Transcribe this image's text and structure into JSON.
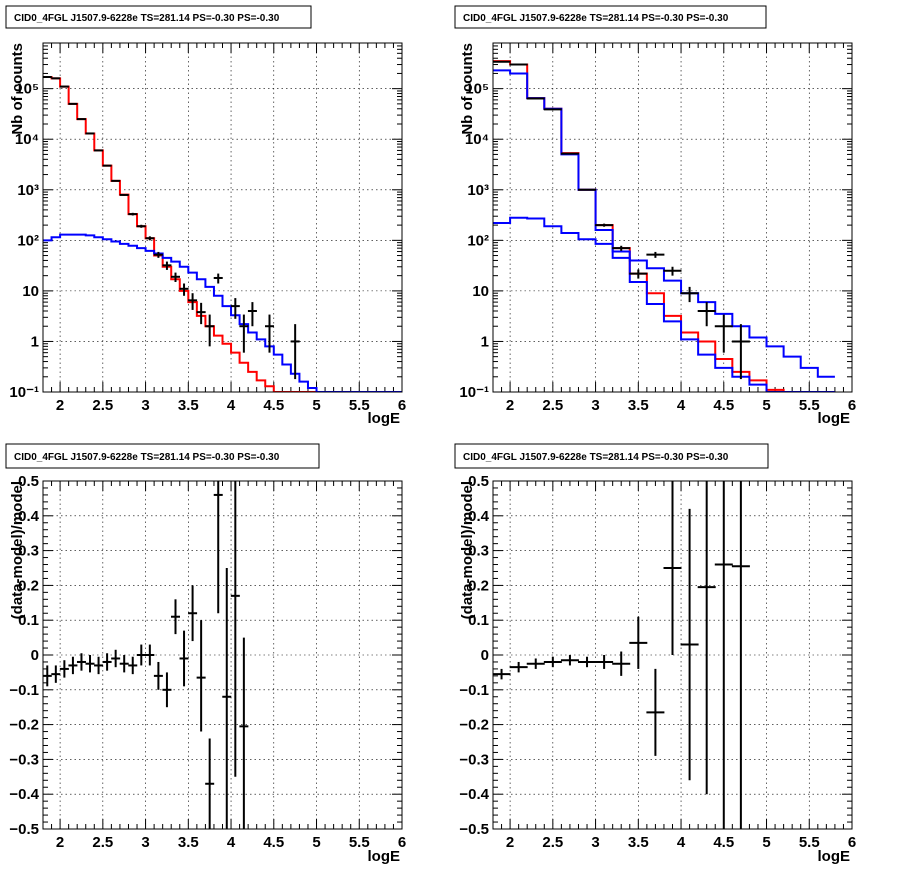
{
  "chart_data": [
    {
      "id": "top-left",
      "type": "line",
      "title": "CID0_4FGL J1507.9-6228e TS=281.14 PS=-0.30 PS=-0.30",
      "xlabel": "logE",
      "ylabel": "Nb of counts",
      "xlim": [
        1.8,
        6.0
      ],
      "ylim": [
        0.1,
        800000
      ],
      "yscale": "log",
      "grid": true,
      "x_ticks": [
        "2",
        "2.5",
        "3",
        "3.5",
        "4",
        "4.5",
        "5",
        "5.5",
        "6"
      ],
      "y_ticks": [
        "10⁻¹",
        "1",
        "10",
        "10²",
        "10³",
        "10⁴",
        "10⁵"
      ],
      "bin_edges": [
        1.8,
        1.9,
        2.0,
        2.1,
        2.2,
        2.3,
        2.4,
        2.5,
        2.6,
        2.7,
        2.8,
        2.9,
        3.0,
        3.1,
        3.2,
        3.3,
        3.4,
        3.5,
        3.6,
        3.7,
        3.8,
        3.9,
        4.0,
        4.1,
        4.2,
        4.3,
        4.4,
        4.5,
        4.6,
        4.7,
        4.8,
        4.9,
        5.0,
        5.1,
        5.2,
        5.3,
        5.4,
        5.5,
        5.6,
        5.7,
        5.8,
        5.9,
        6.0
      ],
      "series": [
        {
          "color": "#ff0000",
          "style": "step",
          "values": [
            170000,
            160000,
            110000,
            50000,
            25000,
            13000,
            6000,
            3000,
            1500,
            800,
            330,
            190,
            110,
            50,
            30,
            17,
            10,
            6,
            3.2,
            2.0,
            1.3,
            0.9,
            0.6,
            0.38,
            0.25,
            0.17,
            0.13,
            0.1,
            0.1,
            0.1,
            0.1,
            0.1,
            0.1,
            0.1,
            0.1,
            0.1,
            0.1,
            0.1,
            0.1,
            0.1,
            0.1,
            0.1
          ]
        },
        {
          "color": "#0000ff",
          "style": "step",
          "values": [
            100,
            115,
            130,
            130,
            130,
            125,
            115,
            105,
            95,
            85,
            78,
            70,
            62,
            55,
            45,
            38,
            30,
            23,
            17,
            12,
            8,
            5,
            3.3,
            2.2,
            1.5,
            1.1,
            0.8,
            0.55,
            0.35,
            0.23,
            0.16,
            0.12,
            0.1,
            0.1,
            0.1,
            0.1,
            0.1,
            0.1,
            0.1,
            0.1,
            0.1,
            0.1
          ]
        },
        {
          "color": "#000000",
          "style": "errorbar",
          "points": [
            {
              "x": 1.85,
              "y": 170000,
              "lo": 169000,
              "hi": 171000
            },
            {
              "x": 1.95,
              "y": 160000,
              "lo": 159000,
              "hi": 161000
            },
            {
              "x": 2.05,
              "y": 110000,
              "lo": 109500,
              "hi": 110500
            },
            {
              "x": 2.15,
              "y": 50000,
              "lo": 49700,
              "hi": 50300
            },
            {
              "x": 2.25,
              "y": 25000,
              "lo": 24800,
              "hi": 25200
            },
            {
              "x": 2.35,
              "y": 13000,
              "lo": 12900,
              "hi": 13100
            },
            {
              "x": 2.45,
              "y": 6000,
              "lo": 5900,
              "hi": 6100
            },
            {
              "x": 2.55,
              "y": 3000,
              "lo": 2950,
              "hi": 3050
            },
            {
              "x": 2.65,
              "y": 1500,
              "lo": 1460,
              "hi": 1540
            },
            {
              "x": 2.75,
              "y": 790,
              "lo": 760,
              "hi": 820
            },
            {
              "x": 2.85,
              "y": 330,
              "lo": 310,
              "hi": 350
            },
            {
              "x": 2.95,
              "y": 190,
              "lo": 177,
              "hi": 203
            },
            {
              "x": 3.05,
              "y": 110,
              "lo": 100,
              "hi": 120
            },
            {
              "x": 3.15,
              "y": 52,
              "lo": 45,
              "hi": 59
            },
            {
              "x": 3.25,
              "y": 32,
              "lo": 26,
              "hi": 38
            },
            {
              "x": 3.35,
              "y": 19,
              "lo": 15,
              "hi": 23
            },
            {
              "x": 3.45,
              "y": 11,
              "lo": 8,
              "hi": 14
            },
            {
              "x": 3.55,
              "y": 6.5,
              "lo": 4.2,
              "hi": 9
            },
            {
              "x": 3.65,
              "y": 3.8,
              "lo": 2.2,
              "hi": 5.8
            },
            {
              "x": 3.75,
              "y": 2.0,
              "lo": 0.8,
              "hi": 3.4
            },
            {
              "x": 3.85,
              "y": 18,
              "lo": 14,
              "hi": 22
            },
            {
              "x": 4.05,
              "y": 5,
              "lo": 2.8,
              "hi": 7.2
            },
            {
              "x": 4.15,
              "y": 2,
              "lo": 0.6,
              "hi": 3.4
            },
            {
              "x": 4.25,
              "y": 4,
              "lo": 2,
              "hi": 6
            },
            {
              "x": 4.45,
              "y": 2,
              "lo": 0.6,
              "hi": 3.4
            },
            {
              "x": 4.75,
              "y": 1,
              "lo": 0.18,
              "hi": 2.2
            }
          ]
        }
      ]
    },
    {
      "id": "top-right",
      "type": "line",
      "title": "CID0_4FGL J1507.9-6228e TS=281.14 PS=-0.30 PS=-0.30",
      "xlabel": "logE",
      "ylabel": "Nb of counts",
      "xlim": [
        1.8,
        6.0
      ],
      "ylim": [
        0.1,
        800000
      ],
      "yscale": "log",
      "grid": true,
      "x_ticks": [
        "2",
        "2.5",
        "3",
        "3.5",
        "4",
        "4.5",
        "5",
        "5.5",
        "6"
      ],
      "y_ticks": [
        "10⁻¹",
        "1",
        "10",
        "10²",
        "10³",
        "10⁴",
        "10⁵"
      ],
      "bin_edges": [
        1.8,
        2.0,
        2.2,
        2.4,
        2.6,
        2.8,
        3.0,
        3.2,
        3.4,
        3.6,
        3.8,
        4.0,
        4.2,
        4.4,
        4.6,
        4.8,
        5.0,
        5.2,
        5.4,
        5.6,
        5.8,
        6.0
      ],
      "series": [
        {
          "color": "#ff0000",
          "style": "step",
          "values": [
            350000,
            300000,
            65000,
            40000,
            5300,
            1000,
            200,
            70,
            22,
            9,
            3.2,
            1.5,
            1.0,
            0.45,
            0.25,
            0.17,
            0.11,
            0.1,
            0.1,
            0.1
          ]
        },
        {
          "color": "#0000ff",
          "style": "step",
          "values": [
            230000,
            200000,
            65000,
            40000,
            5000,
            1000,
            160,
            45,
            15,
            5.5,
            2.5,
            1.1,
            0.55,
            0.3,
            0.2,
            0.14,
            0.1,
            0.1,
            0.1,
            0.1
          ]
        },
        {
          "color": "#0000ff",
          "style": "step",
          "role": "background",
          "values": [
            220,
            280,
            270,
            190,
            140,
            105,
            85,
            60,
            40,
            28,
            16,
            9,
            6,
            3.5,
            2.0,
            1.2,
            0.8,
            0.5,
            0.3,
            0.2
          ]
        },
        {
          "color": "#000000",
          "style": "errorbar",
          "points": [
            {
              "x": 1.9,
              "y": 340000,
              "lo": 339000,
              "hi": 341000
            },
            {
              "x": 2.1,
              "y": 300000,
              "lo": 299000,
              "hi": 301000
            },
            {
              "x": 2.3,
              "y": 64000,
              "lo": 63500,
              "hi": 64500
            },
            {
              "x": 2.5,
              "y": 39000,
              "lo": 38700,
              "hi": 39300
            },
            {
              "x": 2.7,
              "y": 5200,
              "lo": 5100,
              "hi": 5300
            },
            {
              "x": 2.9,
              "y": 1000,
              "lo": 970,
              "hi": 1030
            },
            {
              "x": 3.1,
              "y": 200,
              "lo": 186,
              "hi": 214
            },
            {
              "x": 3.3,
              "y": 70,
              "lo": 62,
              "hi": 78
            },
            {
              "x": 3.5,
              "y": 22,
              "lo": 17.5,
              "hi": 26.5
            },
            {
              "x": 3.7,
              "y": 52,
              "lo": 45,
              "hi": 59
            },
            {
              "x": 3.9,
              "y": 25,
              "lo": 20,
              "hi": 30
            },
            {
              "x": 4.1,
              "y": 9,
              "lo": 6,
              "hi": 12
            },
            {
              "x": 4.3,
              "y": 4,
              "lo": 2,
              "hi": 6
            },
            {
              "x": 4.5,
              "y": 2,
              "lo": 0.6,
              "hi": 3.4
            },
            {
              "x": 4.7,
              "y": 1,
              "lo": 0.18,
              "hi": 2.2
            }
          ]
        }
      ]
    },
    {
      "id": "bottom-left",
      "type": "scatter",
      "title": "CID0_4FGL J1507.9-6228e TS=281.14 PS=-0.30 PS=-0.30",
      "xlabel": "logE",
      "ylabel": "(data-model)/model",
      "xlim": [
        1.8,
        6.0
      ],
      "ylim": [
        -0.5,
        0.5
      ],
      "grid": true,
      "x_ticks": [
        "2",
        "2.5",
        "3",
        "3.5",
        "4",
        "4.5",
        "5",
        "5.5",
        "6"
      ],
      "y_ticks": [
        "−0.5",
        "−0.4",
        "−0.3",
        "−0.2",
        "−0.1",
        "0",
        "0.1",
        "0.2",
        "0.3",
        "0.4",
        "0.5"
      ],
      "series": [
        {
          "color": "#000000",
          "style": "errorbar",
          "points": [
            {
              "x": 1.85,
              "y": -0.06,
              "lo": -0.09,
              "hi": -0.03
            },
            {
              "x": 1.95,
              "y": -0.055,
              "lo": -0.08,
              "hi": -0.03
            },
            {
              "x": 2.05,
              "y": -0.04,
              "lo": -0.065,
              "hi": -0.015
            },
            {
              "x": 2.15,
              "y": -0.03,
              "lo": -0.055,
              "hi": -0.005
            },
            {
              "x": 2.25,
              "y": -0.02,
              "lo": -0.045,
              "hi": 0.005
            },
            {
              "x": 2.35,
              "y": -0.025,
              "lo": -0.05,
              "hi": 0.0
            },
            {
              "x": 2.45,
              "y": -0.03,
              "lo": -0.055,
              "hi": -0.005
            },
            {
              "x": 2.55,
              "y": -0.02,
              "lo": -0.045,
              "hi": 0.005
            },
            {
              "x": 2.65,
              "y": -0.01,
              "lo": -0.035,
              "hi": 0.015
            },
            {
              "x": 2.75,
              "y": -0.025,
              "lo": -0.05,
              "hi": 0.0
            },
            {
              "x": 2.85,
              "y": -0.03,
              "lo": -0.055,
              "hi": -0.005
            },
            {
              "x": 2.95,
              "y": 0.0,
              "lo": -0.03,
              "hi": 0.03
            },
            {
              "x": 3.05,
              "y": 0.0,
              "lo": -0.03,
              "hi": 0.03
            },
            {
              "x": 3.15,
              "y": -0.06,
              "lo": -0.1,
              "hi": -0.02
            },
            {
              "x": 3.25,
              "y": -0.1,
              "lo": -0.15,
              "hi": -0.05
            },
            {
              "x": 3.35,
              "y": 0.11,
              "lo": 0.06,
              "hi": 0.16
            },
            {
              "x": 3.45,
              "y": -0.01,
              "lo": -0.09,
              "hi": 0.07
            },
            {
              "x": 3.55,
              "y": 0.12,
              "lo": 0.04,
              "hi": 0.2
            },
            {
              "x": 3.65,
              "y": -0.065,
              "lo": -0.22,
              "hi": 0.1
            },
            {
              "x": 3.75,
              "y": -0.37,
              "lo": -0.5,
              "hi": -0.24
            },
            {
              "x": 3.85,
              "y": 0.46,
              "lo": 0.12,
              "hi": 0.5
            },
            {
              "x": 3.95,
              "y": -0.12,
              "lo": -0.5,
              "hi": 0.25
            },
            {
              "x": 4.05,
              "y": 0.17,
              "lo": -0.35,
              "hi": 0.5
            },
            {
              "x": 4.15,
              "y": -0.205,
              "lo": -0.5,
              "hi": 0.05
            }
          ]
        }
      ]
    },
    {
      "id": "bottom-right",
      "type": "scatter",
      "title": "CID0_4FGL J1507.9-6228e TS=281.14 PS=-0.30 PS=-0.30",
      "xlabel": "logE",
      "ylabel": "(data-model)/model",
      "xlim": [
        1.8,
        6.0
      ],
      "ylim": [
        -0.5,
        0.5
      ],
      "grid": true,
      "x_ticks": [
        "2",
        "2.5",
        "3",
        "3.5",
        "4",
        "4.5",
        "5",
        "5.5",
        "6"
      ],
      "y_ticks": [
        "−0.5",
        "−0.4",
        "−0.3",
        "−0.2",
        "−0.1",
        "0",
        "0.1",
        "0.2",
        "0.3",
        "0.4",
        "0.5"
      ],
      "series": [
        {
          "color": "#000000",
          "style": "errorbar",
          "points": [
            {
              "x": 1.9,
              "y": -0.055,
              "lo": -0.07,
              "hi": -0.04
            },
            {
              "x": 2.1,
              "y": -0.035,
              "lo": -0.05,
              "hi": -0.02
            },
            {
              "x": 2.3,
              "y": -0.025,
              "lo": -0.04,
              "hi": -0.01
            },
            {
              "x": 2.5,
              "y": -0.02,
              "lo": -0.035,
              "hi": -0.005
            },
            {
              "x": 2.7,
              "y": -0.015,
              "lo": -0.03,
              "hi": 0.0
            },
            {
              "x": 2.9,
              "y": -0.02,
              "lo": -0.035,
              "hi": -0.005
            },
            {
              "x": 3.1,
              "y": -0.02,
              "lo": -0.04,
              "hi": 0.0
            },
            {
              "x": 3.3,
              "y": -0.025,
              "lo": -0.06,
              "hi": 0.01
            },
            {
              "x": 3.5,
              "y": 0.035,
              "lo": -0.04,
              "hi": 0.11
            },
            {
              "x": 3.7,
              "y": -0.165,
              "lo": -0.29,
              "hi": -0.04
            },
            {
              "x": 3.9,
              "y": 0.25,
              "lo": 0.0,
              "hi": 0.5
            },
            {
              "x": 4.1,
              "y": 0.03,
              "lo": -0.36,
              "hi": 0.42
            },
            {
              "x": 4.3,
              "y": 0.195,
              "lo": -0.4,
              "hi": 0.5
            },
            {
              "x": 4.5,
              "y": 0.26,
              "lo": -0.5,
              "hi": 0.5
            },
            {
              "x": 4.7,
              "y": 0.255,
              "lo": -0.5,
              "hi": 0.5
            }
          ]
        }
      ]
    }
  ]
}
